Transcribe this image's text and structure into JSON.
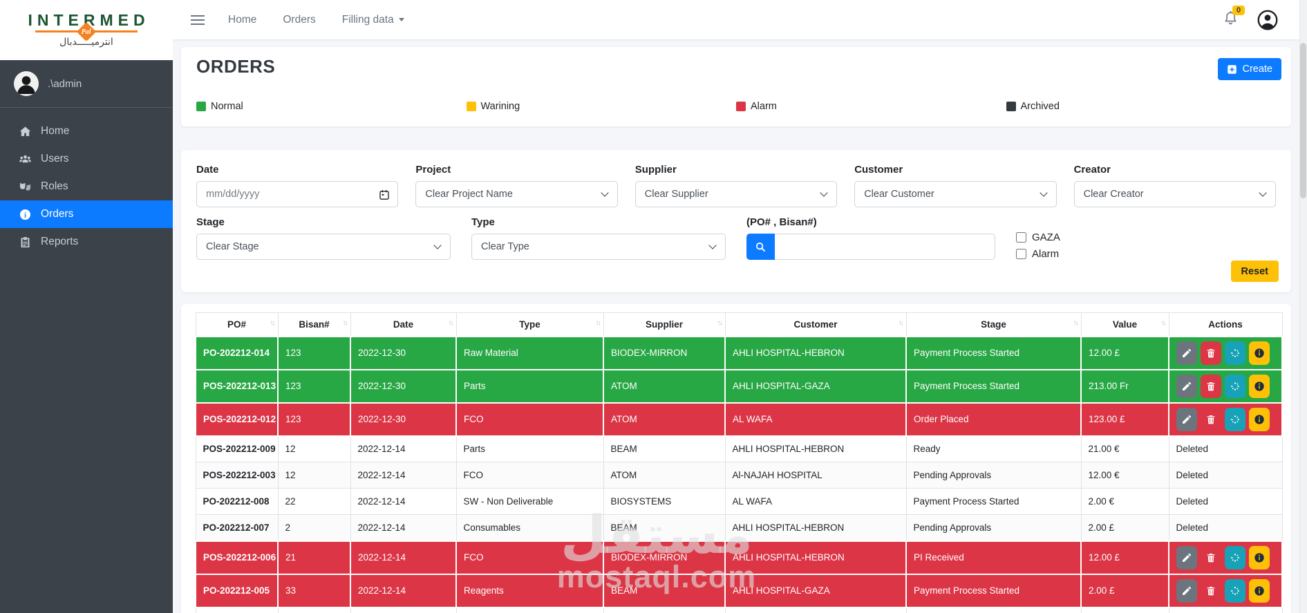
{
  "sidebar": {
    "logo_title": "INTERMED",
    "logo_badge": "Pal",
    "logo_arabic": "انترميـــــدبال",
    "user_name": ".\\admin",
    "items": [
      {
        "label": "Home",
        "icon": "home-icon",
        "active": false
      },
      {
        "label": "Users",
        "icon": "users-icon",
        "active": false
      },
      {
        "label": "Roles",
        "icon": "roles-icon",
        "active": false
      },
      {
        "label": "Orders",
        "icon": "info-icon",
        "active": true
      },
      {
        "label": "Reports",
        "icon": "reports-icon",
        "active": false
      }
    ]
  },
  "topnav": {
    "links": [
      {
        "label": "Home",
        "dropdown": false
      },
      {
        "label": "Orders",
        "dropdown": false
      },
      {
        "label": "Filling data",
        "dropdown": true
      }
    ],
    "notification_badge": "0"
  },
  "page": {
    "title": "ORDERS",
    "create_button": "Create",
    "legend": [
      {
        "label": "Normal",
        "color": "#28a745"
      },
      {
        "label": "Warining",
        "color": "#ffc107"
      },
      {
        "label": "Alarm",
        "color": "#dc3545"
      },
      {
        "label": "Archived",
        "color": "#343a40"
      }
    ]
  },
  "filters": {
    "date": {
      "label": "Date",
      "placeholder": "mm/dd/yyyy"
    },
    "project": {
      "label": "Project",
      "value": "Clear Project Name"
    },
    "supplier": {
      "label": "Supplier",
      "value": "Clear Supplier"
    },
    "customer": {
      "label": "Customer",
      "value": "Clear Customer"
    },
    "creator": {
      "label": "Creator",
      "value": "Clear Creator"
    },
    "stage": {
      "label": "Stage",
      "value": "Clear Stage"
    },
    "type": {
      "label": "Type",
      "value": "Clear Type"
    },
    "search": {
      "label": "(PO# , Bisan#)",
      "value": ""
    },
    "checkboxes": [
      {
        "label": "GAZA",
        "checked": false
      },
      {
        "label": "Alarm",
        "checked": false
      }
    ],
    "reset_button": "Reset"
  },
  "table": {
    "columns": [
      {
        "label": "PO#",
        "sortable": true
      },
      {
        "label": "Bisan#",
        "sortable": true
      },
      {
        "label": "Date",
        "sortable": true
      },
      {
        "label": "Type",
        "sortable": true
      },
      {
        "label": "Supplier",
        "sortable": true
      },
      {
        "label": "Customer",
        "sortable": true
      },
      {
        "label": "Stage",
        "sortable": true
      },
      {
        "label": "Value",
        "sortable": true
      },
      {
        "label": "Actions",
        "sortable": false
      }
    ],
    "rows": [
      {
        "po": "PO-202212-014",
        "bisan": "123",
        "date": "2022-12-30",
        "type": "Raw Material",
        "supplier": "BIODEX-MIRRON",
        "customer": "AHLI HOSPITAL-HEBRON",
        "stage": "Payment Process Started",
        "value": "12.00 £",
        "status": "success",
        "actions": "buttons"
      },
      {
        "po": "POS-202212-013",
        "bisan": "123",
        "date": "2022-12-30",
        "type": "Parts",
        "supplier": "ATOM",
        "customer": "AHLI HOSPITAL-GAZA",
        "stage": "Payment Process Started",
        "value": "213.00 Fr",
        "status": "success",
        "actions": "buttons"
      },
      {
        "po": "POS-202212-012",
        "bisan": "123",
        "date": "2022-12-30",
        "type": "FCO",
        "supplier": "ATOM",
        "customer": "AL WAFA",
        "stage": "Order Placed",
        "value": "123.00 £",
        "status": "alarm",
        "actions": "buttons"
      },
      {
        "po": "POS-202212-009",
        "bisan": "12",
        "date": "2022-12-14",
        "type": "Parts",
        "supplier": "BEAM",
        "customer": "AHLI HOSPITAL-HEBRON",
        "stage": "Ready",
        "value": "21.00 €",
        "status": "default",
        "actions": "Deleted"
      },
      {
        "po": "POS-202212-003",
        "bisan": "12",
        "date": "2022-12-14",
        "type": "FCO",
        "supplier": "ATOM",
        "customer": "Al-NAJAH HOSPITAL",
        "stage": "Pending Approvals",
        "value": "12.00 €",
        "status": "default",
        "actions": "Deleted"
      },
      {
        "po": "PO-202212-008",
        "bisan": "22",
        "date": "2022-12-14",
        "type": "SW - Non Deliverable",
        "supplier": "BIOSYSTEMS",
        "customer": "AL WAFA",
        "stage": "Payment Process Started",
        "value": "2.00 €",
        "status": "default",
        "actions": "Deleted"
      },
      {
        "po": "PO-202212-007",
        "bisan": "2",
        "date": "2022-12-14",
        "type": "Consumables",
        "supplier": "BEAM",
        "customer": "AHLI HOSPITAL-HEBRON",
        "stage": "Pending Approvals",
        "value": "2.00 £",
        "status": "default",
        "actions": "Deleted"
      },
      {
        "po": "POS-202212-006",
        "bisan": "21",
        "date": "2022-12-14",
        "type": "FCO",
        "supplier": "BIODEX-MIRRON",
        "customer": "AHLI HOSPITAL-HEBRON",
        "stage": "PI Received",
        "value": "12.00 £",
        "status": "alarm",
        "actions": "buttons"
      },
      {
        "po": "PO-202212-005",
        "bisan": "33",
        "date": "2022-12-14",
        "type": "Reagents",
        "supplier": "BEAM",
        "customer": "AHLI HOSPITAL-GAZA",
        "stage": "Payment Process Started",
        "value": "2.00 £",
        "status": "alarm",
        "actions": "buttons"
      }
    ],
    "action_buttons": [
      {
        "name": "edit-order",
        "icon": "edit-icon",
        "color": "#6c757d"
      },
      {
        "name": "delete-order",
        "icon": "delete-icon",
        "color": "#dc3545"
      },
      {
        "name": "process-order",
        "icon": "process-icon",
        "color": "#17a2b8"
      },
      {
        "name": "info-order",
        "icon": "info-action-icon",
        "color": "#ffc107"
      }
    ]
  },
  "colors": {
    "primary": "#0d7bff",
    "success": "#28a745",
    "warning": "#ffc107",
    "alarm": "#dc3545",
    "archived": "#343a40",
    "teal": "#17a2b8",
    "sidebar_bg": "#3b4249"
  },
  "watermark": {
    "line1": "مستقل",
    "line2": "mostaql.com"
  }
}
